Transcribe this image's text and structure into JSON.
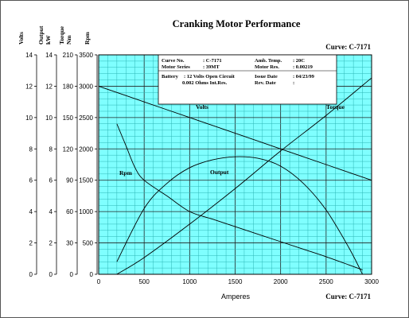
{
  "chart_data": {
    "type": "line",
    "title": "Cranking Motor Performance",
    "curve_label": "Curve: C-7171",
    "xlabel": "Amperes",
    "xlim": [
      0,
      3000
    ],
    "x_ticks": [
      "0",
      "500",
      "1000",
      "1500",
      "2000",
      "2500",
      "3000"
    ],
    "axes": [
      {
        "label": "Volts",
        "unit": "",
        "lim": [
          0,
          14
        ],
        "ticks": [
          "0",
          "2",
          "4",
          "6",
          "8",
          "10",
          "12",
          "14"
        ]
      },
      {
        "label": "Output",
        "unit": "kW",
        "lim": [
          0,
          14
        ],
        "ticks": [
          "0",
          "2",
          "4",
          "6",
          "8",
          "10",
          "12",
          "14"
        ]
      },
      {
        "label": "Torque",
        "unit": "Nm",
        "lim": [
          0,
          210
        ],
        "ticks": [
          "0",
          "30",
          "60",
          "90",
          "120",
          "150",
          "180",
          "210"
        ]
      },
      {
        "label": "Rpm",
        "unit": "",
        "lim": [
          0,
          3500
        ],
        "ticks": [
          "0",
          "500",
          "1000",
          "1500",
          "2000",
          "2500",
          "3000",
          "3500"
        ]
      }
    ],
    "series": [
      {
        "name": "Volts",
        "axis": "Volts",
        "x": [
          0,
          500,
          1000,
          1500,
          2000,
          2500,
          3000
        ],
        "values": [
          12.0,
          11.0,
          10.0,
          9.0,
          8.0,
          7.0,
          6.0
        ]
      },
      {
        "name": "Torque",
        "axis": "Torque",
        "x": [
          200,
          500,
          1000,
          1500,
          2000,
          2500,
          3000
        ],
        "values": [
          0,
          16,
          48,
          82,
          118,
          152,
          188
        ]
      },
      {
        "name": "Output",
        "axis": "Output",
        "x": [
          200,
          500,
          750,
          1000,
          1250,
          1500,
          1750,
          2000,
          2250,
          2500,
          2750,
          2900
        ],
        "values": [
          0.8,
          4.2,
          5.8,
          6.8,
          7.3,
          7.5,
          7.4,
          6.9,
          5.8,
          4.1,
          1.7,
          0.0
        ]
      },
      {
        "name": "Rpm",
        "axis": "Rpm",
        "x": [
          200,
          300,
          400,
          500,
          750,
          1000,
          1250,
          1500,
          1750,
          2000,
          2250,
          2500,
          2750,
          2900
        ],
        "values": [
          2400,
          2050,
          1700,
          1500,
          1250,
          1000,
          880,
          760,
          640,
          520,
          400,
          280,
          150,
          70
        ]
      }
    ],
    "series_labels": [
      "Volts",
      "Torque",
      "Output",
      "Rpm"
    ],
    "grid": true,
    "info_box": {
      "curve_no_label": "Curve No.",
      "curve_no": ": C-7171",
      "series_label": "Motor Series",
      "series": ": 39MT",
      "amb_label": "Amb. Temp.",
      "amb": ": 20C",
      "motor_res_label": "Motor Res.",
      "motor_res": ": 0.00219",
      "battery_label": "Battery",
      "battery": ": 12 Volts Open Circuit",
      "battery_res": "0.002 Ohms Int.Res.",
      "issue_label": "Issue Date",
      "issue": ": 04/23/99",
      "rev_label": "Rev. Date",
      "rev": ":"
    }
  },
  "colors": {
    "plot_bg": "#7fffff",
    "grid_minor": "#2fb7b7",
    "grid_major": "#222222",
    "curve": "#000000"
  }
}
